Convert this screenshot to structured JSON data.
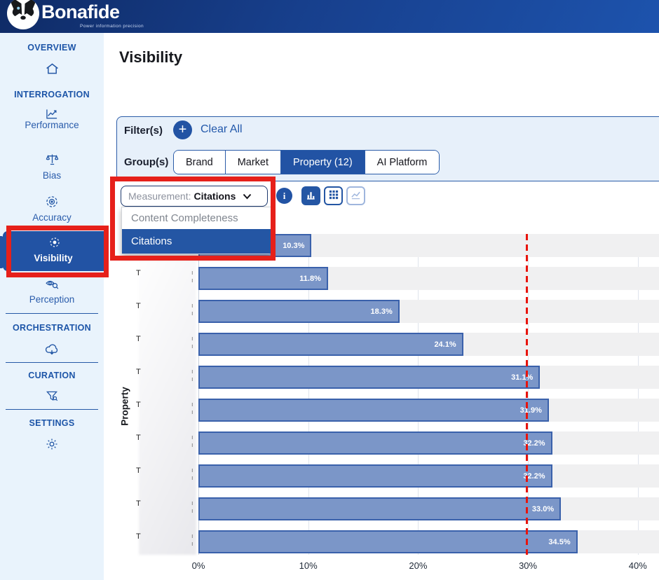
{
  "header": {
    "brand": "Bonafide",
    "tagline": "Power information precision"
  },
  "sidebar": {
    "sections": {
      "overview": "OVERVIEW",
      "interrogation": "INTERROGATION",
      "orchestration": "ORCHESTRATION",
      "curation": "CURATION",
      "settings": "SETTINGS"
    },
    "items": {
      "performance": "Performance",
      "bias": "Bias",
      "accuracy": "Accuracy",
      "visibility": "Visibility",
      "perception": "Perception"
    },
    "active_item": "Visibility"
  },
  "main": {
    "title": "Visibility",
    "filter_label": "Filter(s)",
    "add_filter_label": "+",
    "clear_all": "Clear All",
    "group_label": "Group(s)",
    "groups": [
      "Brand",
      "Market",
      "Property (12)",
      "AI Platform"
    ],
    "active_group": "Property (12)",
    "measurement": {
      "prefix": "Measurement:",
      "selected": "Citations",
      "options": [
        "Content Completeness",
        "Citations"
      ],
      "selected_option": "Citations"
    },
    "toolbar": {
      "icons": [
        "info",
        "bar-chart",
        "table-grid",
        "line-chart"
      ],
      "active_view": "bar-chart"
    }
  },
  "chart_data": {
    "type": "bar",
    "orientation": "horizontal",
    "title": "",
    "xlabel": "",
    "ylabel": "Property",
    "categories_redacted": true,
    "category_visible_prefix": "T",
    "values": [
      10.3,
      11.8,
      18.3,
      24.1,
      31.1,
      31.9,
      32.2,
      32.2,
      33.0,
      34.5
    ],
    "value_labels": [
      "10.3%",
      "11.8%",
      "18.3%",
      "24.1%",
      "31.1%",
      "31.9%",
      "32.2%",
      "32.2%",
      "33.0%",
      "34.5%"
    ],
    "x_ticks": [
      "0%",
      "10%",
      "20%",
      "30%",
      "40%"
    ],
    "xlim": [
      0,
      42
    ],
    "grid": true,
    "legend": false,
    "reference_line_x": 29.8,
    "bar_color": "#7b96c8",
    "bar_border_color": "#3a61ab",
    "track_color": "#f0f0f1",
    "reference_line_color": "#e8140c"
  },
  "annotations": {
    "highlight_color": "#e6201a",
    "highlights": [
      "sidebar-visibility-item",
      "measurement-dropdown"
    ]
  }
}
